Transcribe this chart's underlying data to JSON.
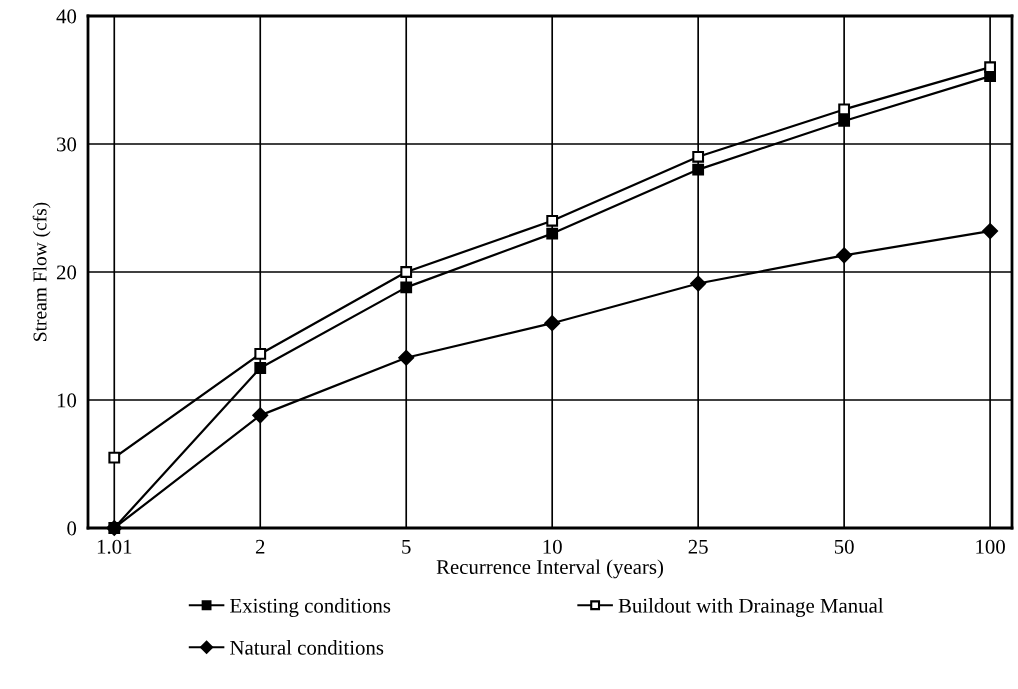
{
  "chart_data": {
    "type": "line",
    "xlabel": "Recurrence Interval (years)",
    "ylabel": "Stream Flow (cfs)",
    "categories": [
      "1.01",
      "2",
      "5",
      "10",
      "25",
      "50",
      "100"
    ],
    "series": [
      {
        "name": "Existing conditions",
        "color": "#000000",
        "marker": "square",
        "values": [
          0,
          12.5,
          18.8,
          23,
          28,
          31.8,
          35.3
        ]
      },
      {
        "name": "Natural conditions",
        "color": "#000000",
        "marker": "diamond",
        "values": [
          0,
          8.8,
          13.3,
          16,
          19.1,
          21.3,
          23.2
        ]
      },
      {
        "name": "Buildout with Drainage Manual",
        "color": "#000000",
        "marker": "square",
        "values": [
          5.5,
          13.6,
          20,
          24,
          29,
          32.7,
          36
        ]
      }
    ],
    "ylim": [
      0,
      40
    ],
    "yticks": [
      0,
      10,
      20,
      30,
      40
    ],
    "grid": true,
    "legend": "bottom",
    "line_style": "solid"
  }
}
